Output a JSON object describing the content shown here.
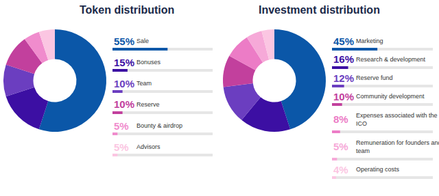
{
  "chart_data": [
    {
      "type": "pie",
      "title": "Token distribution",
      "categories": [
        "Sale",
        "Bonuses",
        "Team",
        "Reserve",
        "Bounty & airdrop",
        "Advisors"
      ],
      "values": [
        55,
        15,
        10,
        10,
        5,
        5
      ],
      "value_labels": [
        "55%",
        "15%",
        "10%",
        "10%",
        "5%",
        "5%"
      ],
      "colors": [
        "#0b57a8",
        "#3c0fa3",
        "#6b3ec0",
        "#c2409d",
        "#f08ccd",
        "#fbc6e2"
      ],
      "xlim": [
        0,
        100
      ],
      "tick_labels": false,
      "data_labels": true
    },
    {
      "type": "pie",
      "title": "Investment distribution",
      "categories": [
        "Marketing",
        "Research & development",
        "Reserve fund",
        "Community development",
        "Expenses associated with the ICO",
        "Remuneration for founders and team",
        "Operating costs"
      ],
      "values": [
        45,
        16,
        12,
        10,
        8,
        5,
        4
      ],
      "value_labels": [
        "45%",
        "16%",
        "12%",
        "10%",
        "8%",
        "5%",
        "4%"
      ],
      "colors": [
        "#0b57a8",
        "#3c0fa3",
        "#6b3ec0",
        "#c2409d",
        "#ec7cc6",
        "#f6a9d8",
        "#fbc6e2"
      ],
      "xlim": [
        0,
        100
      ],
      "tick_labels": false,
      "data_labels": true
    }
  ]
}
